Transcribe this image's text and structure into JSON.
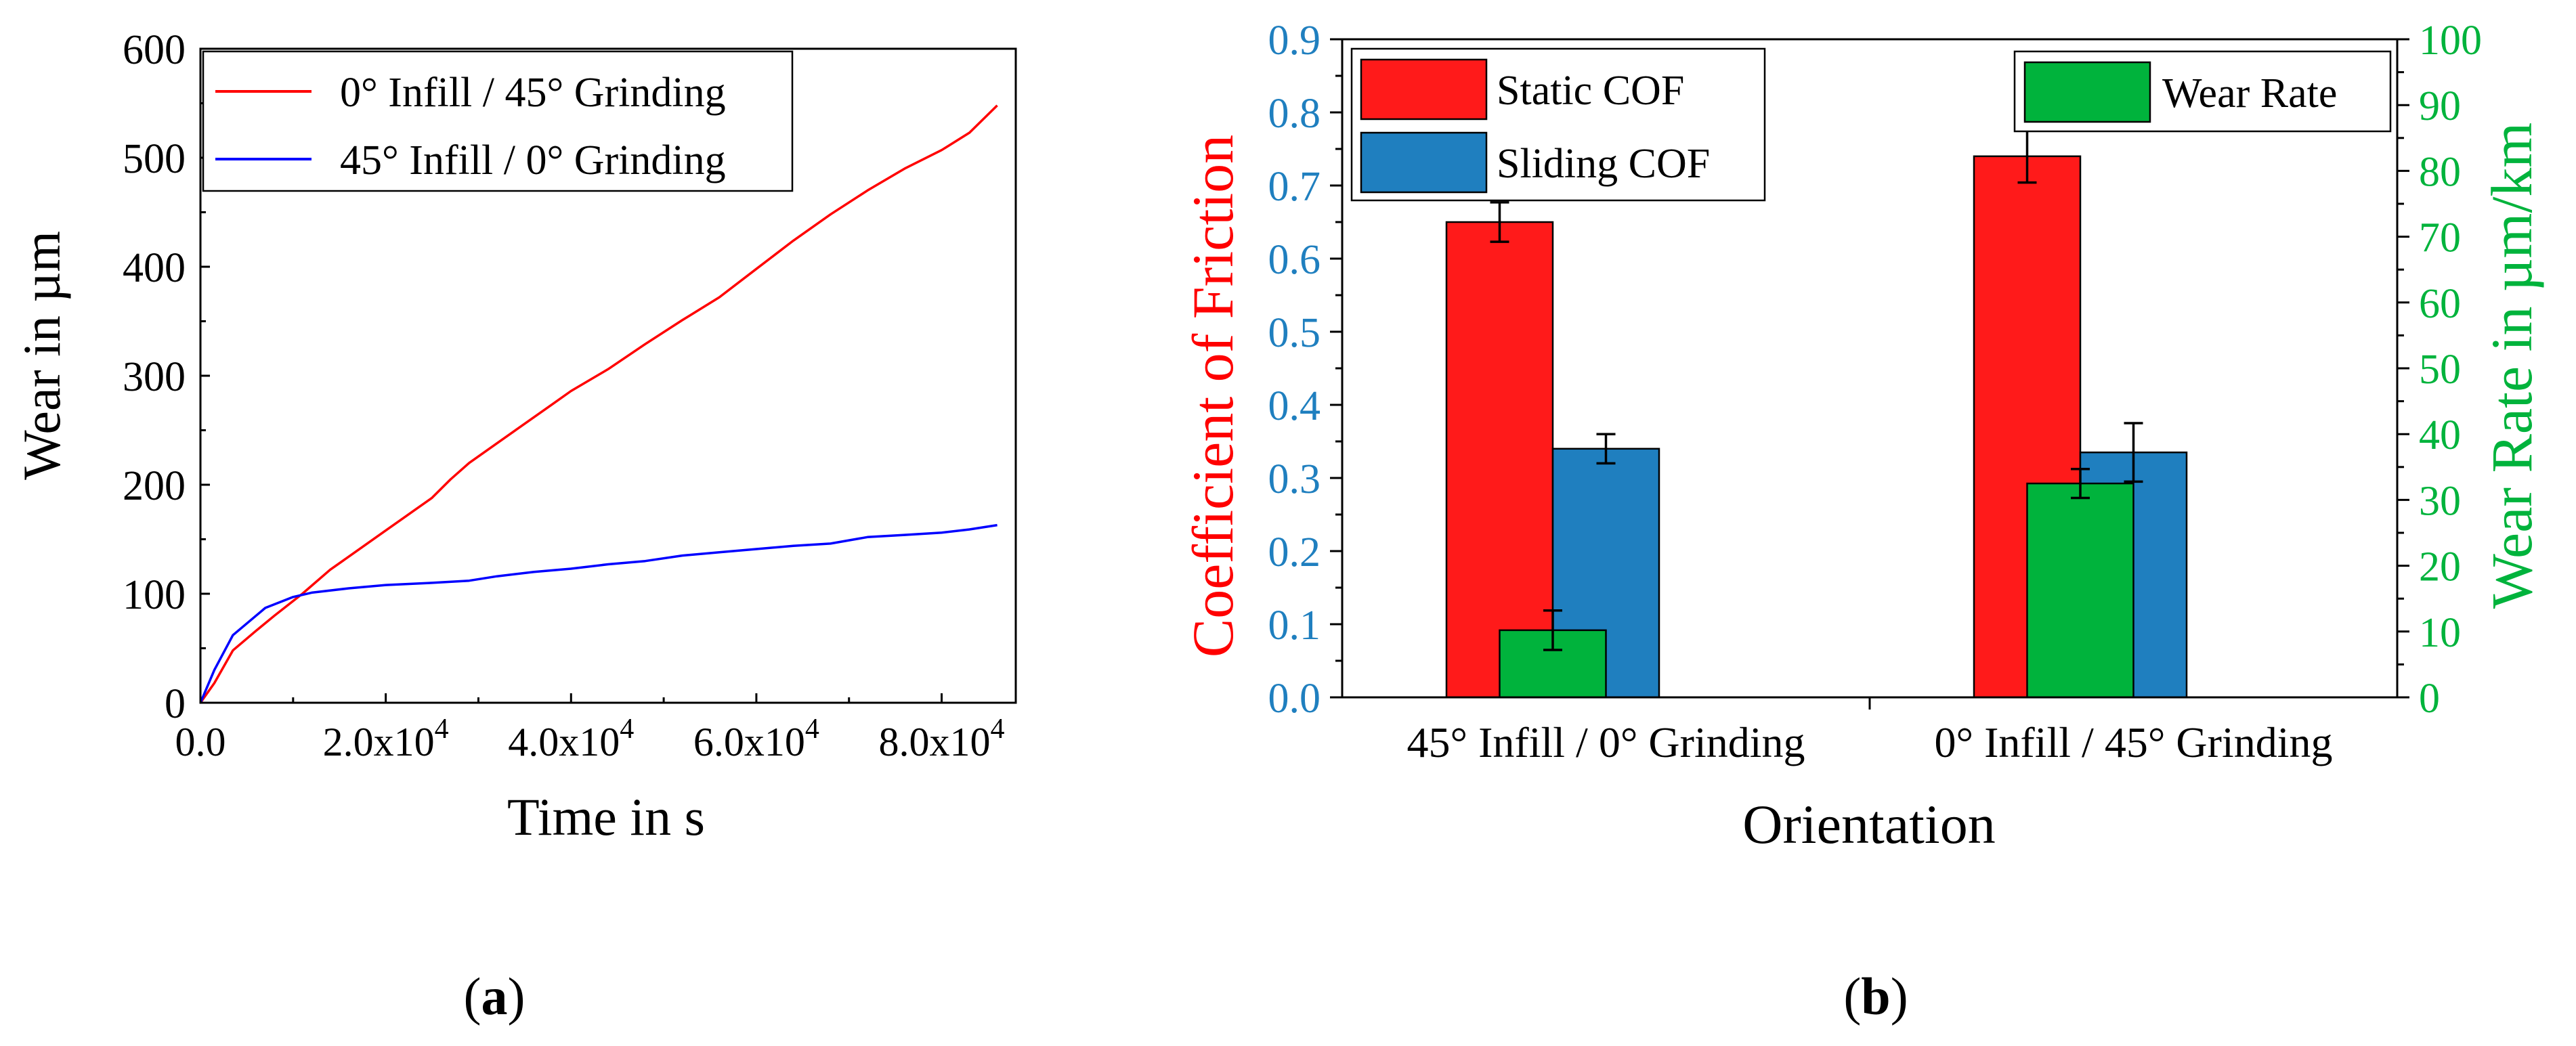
{
  "chart_data": [
    {
      "panel_label": "(a)",
      "type": "line",
      "title": "",
      "xlabel": "Time in s",
      "ylabel": "Wear in µm",
      "xlim": [
        0,
        88000
      ],
      "ylim": [
        0,
        600
      ],
      "xticks": [
        {
          "value": 0,
          "label": "0.0"
        },
        {
          "value": 20000,
          "label": "2.0x10",
          "exp": "4"
        },
        {
          "value": 40000,
          "label": "4.0x10",
          "exp": "4"
        },
        {
          "value": 60000,
          "label": "6.0x10",
          "exp": "4"
        },
        {
          "value": 80000,
          "label": "8.0x10",
          "exp": "4"
        }
      ],
      "yticks": [
        0,
        100,
        200,
        300,
        400,
        500,
        600
      ],
      "grid": false,
      "legend": "top-left",
      "series": [
        {
          "name": "0° Infill / 45° Grinding",
          "color": "#ff0000",
          "points": [
            [
              0,
              0
            ],
            [
              1500,
              18
            ],
            [
              3500,
              48
            ],
            [
              6000,
              66
            ],
            [
              8000,
              80
            ],
            [
              11000,
              100
            ],
            [
              14000,
              122
            ],
            [
              17000,
              140
            ],
            [
              20000,
              158
            ],
            [
              23000,
              176
            ],
            [
              25000,
              188
            ],
            [
              27000,
              205
            ],
            [
              29000,
              220
            ],
            [
              32000,
              238
            ],
            [
              35000,
              256
            ],
            [
              38000,
              274
            ],
            [
              40000,
              286
            ],
            [
              44000,
              306
            ],
            [
              48000,
              329
            ],
            [
              52000,
              351
            ],
            [
              56000,
              372
            ],
            [
              60000,
              398
            ],
            [
              64000,
              424
            ],
            [
              68000,
              448
            ],
            [
              72000,
              470
            ],
            [
              76000,
              490
            ],
            [
              80000,
              507
            ],
            [
              83000,
              523
            ],
            [
              86000,
              548
            ]
          ]
        },
        {
          "name": "45° Infill / 0° Grinding",
          "color": "#0000ff",
          "points": [
            [
              0,
              0
            ],
            [
              1500,
              30
            ],
            [
              3500,
              62
            ],
            [
              7000,
              87
            ],
            [
              10000,
              97
            ],
            [
              12000,
              101
            ],
            [
              16000,
              105
            ],
            [
              20000,
              108
            ],
            [
              25000,
              110
            ],
            [
              29000,
              112
            ],
            [
              32000,
              116
            ],
            [
              36000,
              120
            ],
            [
              40000,
              123
            ],
            [
              44000,
              127
            ],
            [
              48000,
              130
            ],
            [
              52000,
              135
            ],
            [
              56000,
              138
            ],
            [
              60000,
              141
            ],
            [
              64000,
              144
            ],
            [
              68000,
              146
            ],
            [
              72000,
              152
            ],
            [
              76000,
              154
            ],
            [
              80000,
              156
            ],
            [
              83000,
              159
            ],
            [
              86000,
              163
            ]
          ]
        }
      ]
    },
    {
      "panel_label": "(b)",
      "type": "bar",
      "title": "",
      "xlabel": "Orientation",
      "ylabel": "Coefficient of Friction",
      "y2label": "Wear Rate in µm/km",
      "categories": [
        "45° Infill / 0° Grinding",
        "0° Infill / 45° Grinding"
      ],
      "ylim": [
        0,
        0.9
      ],
      "y2lim": [
        0,
        100
      ],
      "yticks": [
        "0.0",
        "0.1",
        "0.2",
        "0.3",
        "0.4",
        "0.5",
        "0.6",
        "0.7",
        "0.8",
        "0.9"
      ],
      "y2ticks": [
        "0",
        "10",
        "20",
        "30",
        "40",
        "50",
        "60",
        "70",
        "80",
        "90",
        "100"
      ],
      "legend_left": "top-left",
      "legend_right": "top-right",
      "colors": {
        "static": "#ff1a1a",
        "sliding": "#1f7fbf",
        "wear": "#00b33c",
        "ylabel": "#ff0000",
        "yaxis": "#1f7fbf",
        "y2": "#00b33c"
      },
      "series": [
        {
          "name": "Static COF",
          "axis": "left",
          "values": [
            0.65,
            0.74
          ],
          "errors": [
            0.027,
            0.036
          ]
        },
        {
          "name": "Sliding COF",
          "axis": "left",
          "values": [
            0.34,
            0.335
          ],
          "errors": [
            0.02,
            0.04
          ]
        },
        {
          "name": "Wear Rate",
          "axis": "right",
          "values": [
            10.2,
            32.5
          ],
          "errors": [
            3.0,
            2.2
          ]
        }
      ]
    }
  ]
}
